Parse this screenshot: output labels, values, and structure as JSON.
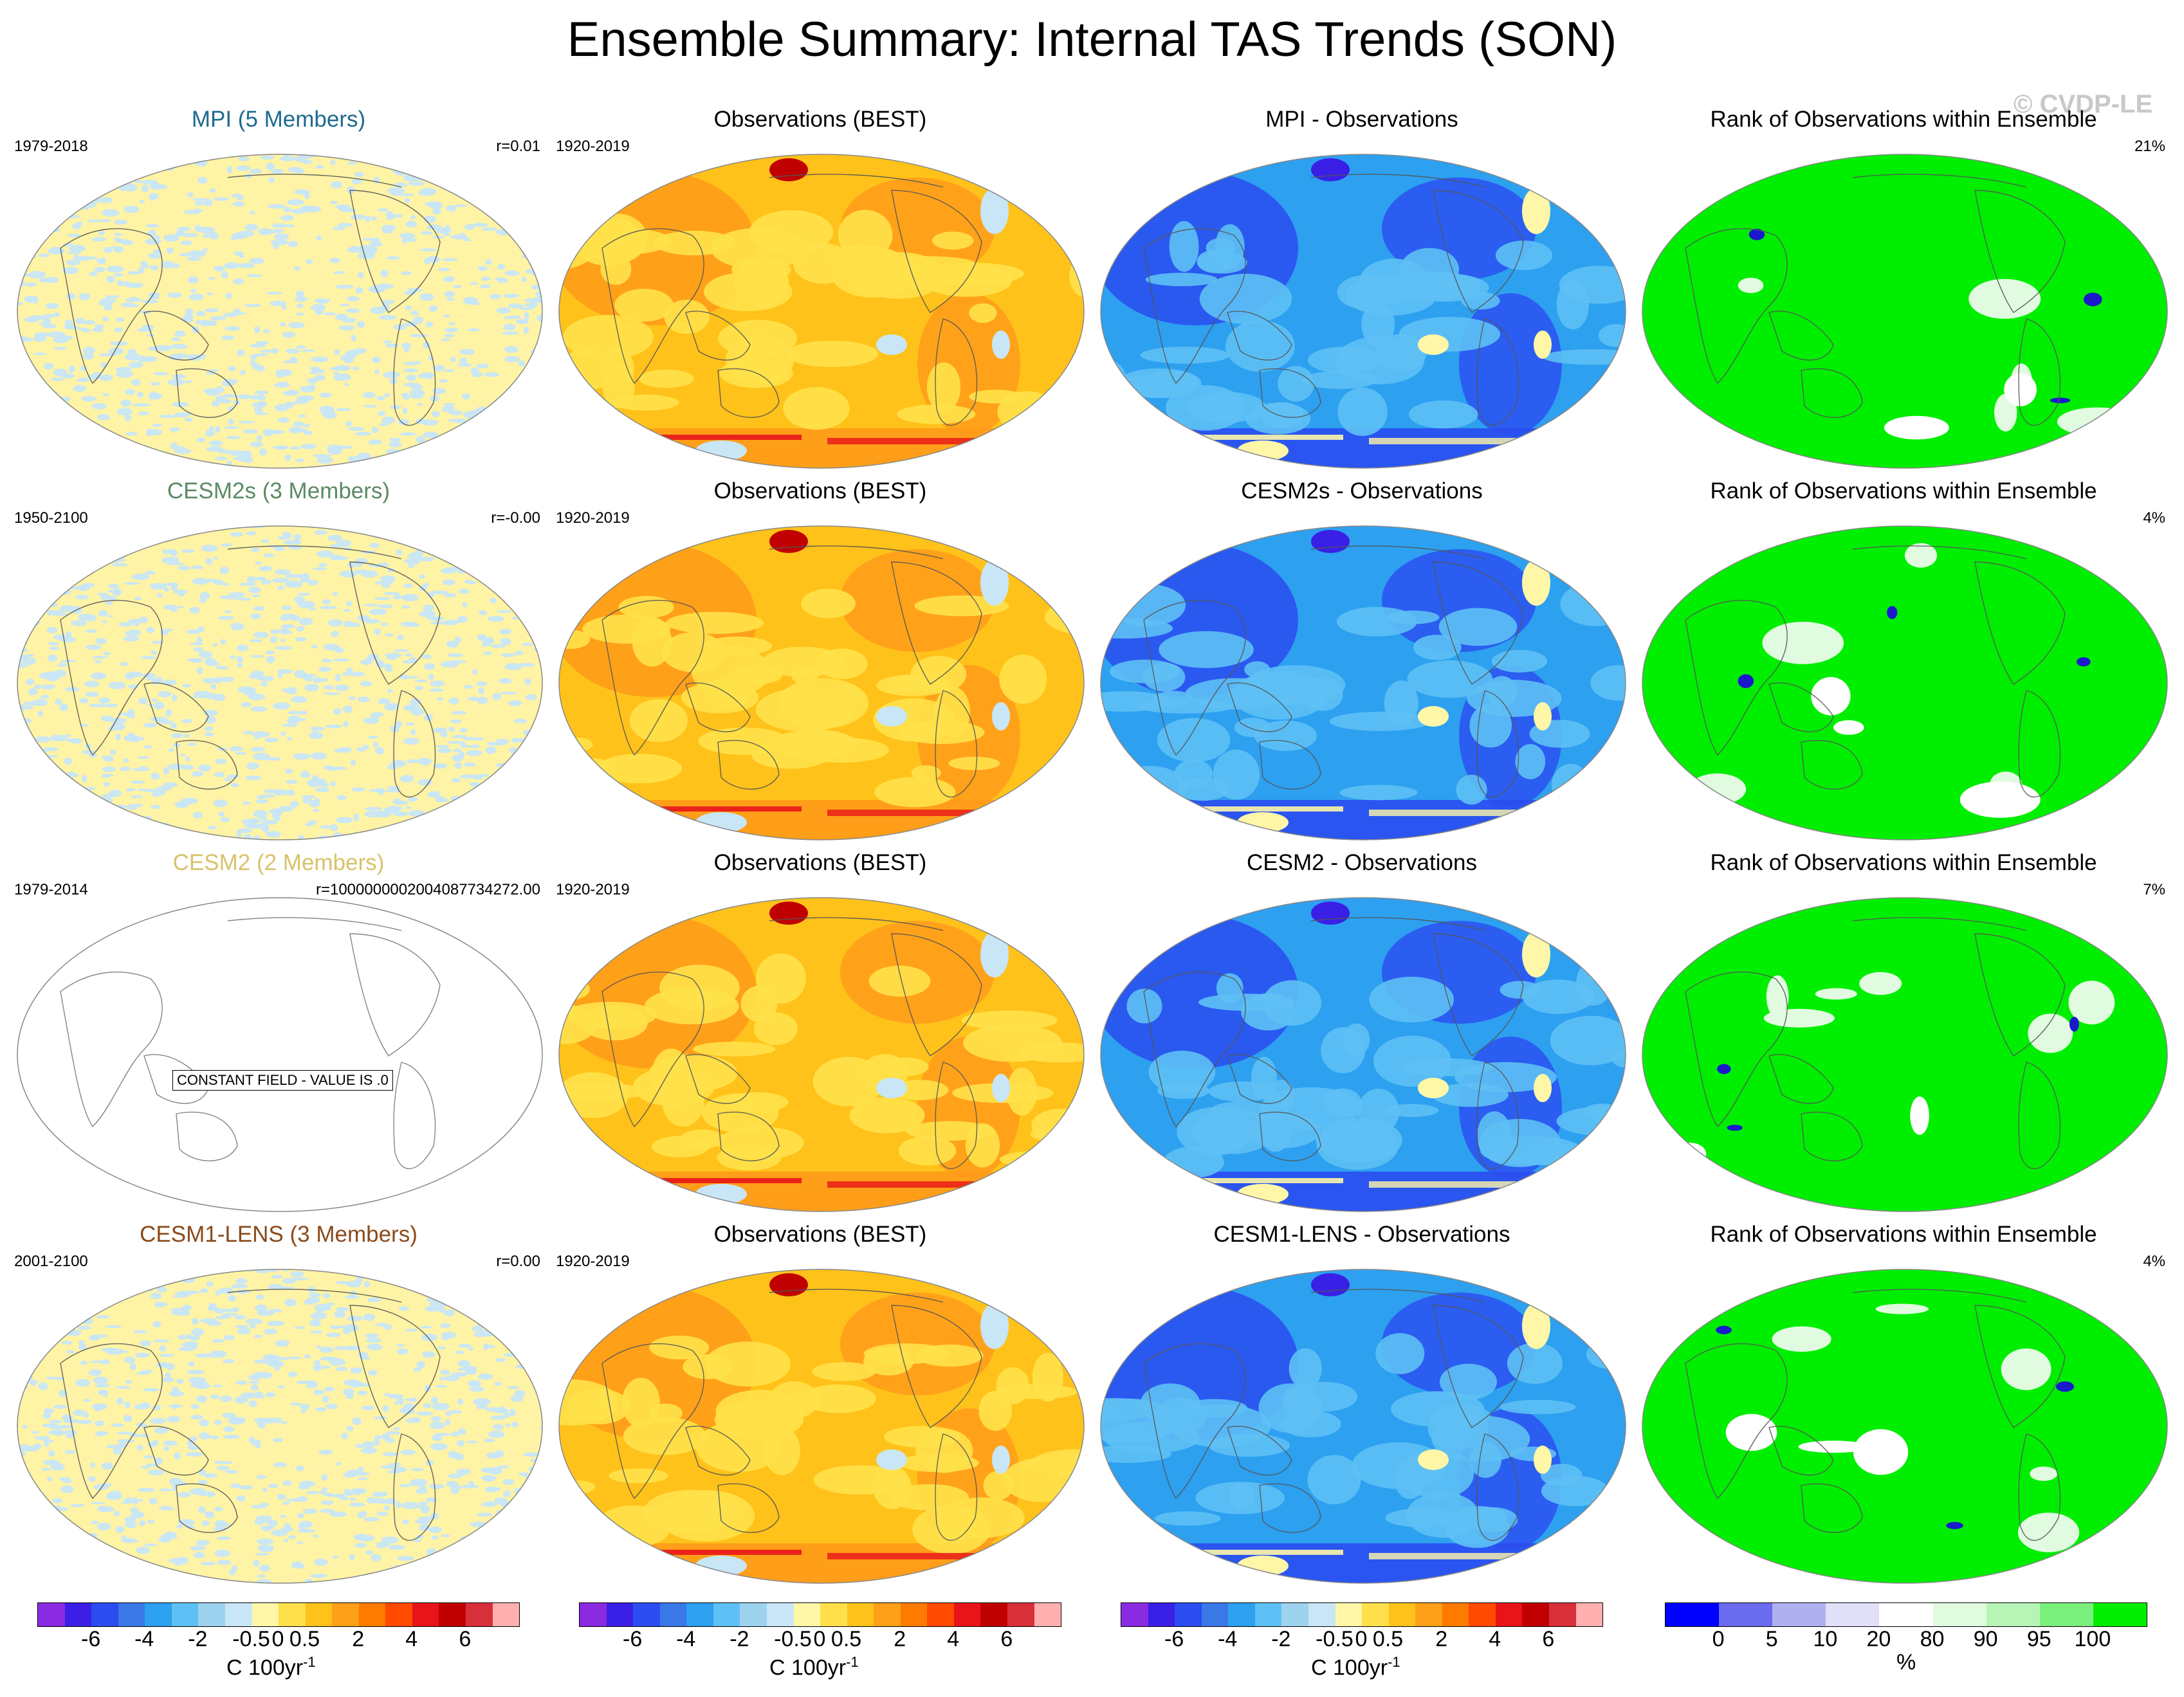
{
  "figure_title": "Ensemble Summary: Internal TAS Trends (SON)",
  "watermark": "© CVDP-LE",
  "rows": [
    {
      "model": {
        "title": "MPI (5 Members)",
        "title_color": "#1c6a8e",
        "period": "1979-2018",
        "r_value": "r=0.01"
      },
      "obs": {
        "title": "Observations (BEST)",
        "period": "1920-2019"
      },
      "diff": {
        "title": "MPI - Observations"
      },
      "rank": {
        "title": "Rank of Observations within Ensemble",
        "percent": "21%"
      }
    },
    {
      "model": {
        "title": "CESM2s (3 Members)",
        "title_color": "#5b8a64",
        "period": "1950-2100",
        "r_value": "r=-0.00"
      },
      "obs": {
        "title": "Observations (BEST)",
        "period": "1920-2019"
      },
      "diff": {
        "title": "CESM2s - Observations"
      },
      "rank": {
        "title": "Rank of Observations within Ensemble",
        "percent": "4%"
      }
    },
    {
      "model": {
        "title": "CESM2 (2 Members)",
        "title_color": "#d9c26a",
        "period": "1979-2014",
        "r_value": "r=1000000002004087734272.00",
        "constant_label": "CONSTANT FIELD - VALUE IS .0"
      },
      "obs": {
        "title": "Observations (BEST)",
        "period": "1920-2019"
      },
      "diff": {
        "title": "CESM2 - Observations"
      },
      "rank": {
        "title": "Rank of Observations within Ensemble",
        "percent": "7%"
      }
    },
    {
      "model": {
        "title": "CESM1-LENS (3 Members)",
        "title_color": "#8a4a1a",
        "period": "2001-2100",
        "r_value": "r=0.00"
      },
      "obs": {
        "title": "Observations (BEST)",
        "period": "1920-2019"
      },
      "diff": {
        "title": "CESM1-LENS - Observations"
      },
      "rank": {
        "title": "Rank of Observations within Ensemble",
        "percent": "4%"
      }
    }
  ],
  "trend_colorbar": {
    "colors": [
      "#8a2be2",
      "#3a1fe6",
      "#2a4cf0",
      "#3a78e8",
      "#2da0f0",
      "#5ec0f5",
      "#9ed3f0",
      "#c8e6f6",
      "#fff6a8",
      "#ffe04a",
      "#ffc21a",
      "#ffa01a",
      "#ff7a00",
      "#ff4a00",
      "#e8141a",
      "#c00000",
      "#d8303a",
      "#ffb0b0"
    ],
    "ticks": [
      "-6",
      "-4",
      "-2",
      "-0.5",
      "0",
      "0.5",
      "2",
      "4",
      "6"
    ],
    "unit_base": "C 100yr",
    "unit_sup": "-1"
  },
  "rank_colorbar": {
    "colors": [
      "#0000ff",
      "#6b6bf0",
      "#b0b0f0",
      "#e0e0f8",
      "#ffffff",
      "#e0fbe0",
      "#b6f5b6",
      "#7bef7b",
      "#00ee00"
    ],
    "ticks": [
      "0",
      "5",
      "10",
      "20",
      "80",
      "90",
      "95",
      "100"
    ],
    "unit": "%"
  },
  "palette": {
    "model_fill": "#fff3a6",
    "model_spot": "#c8e6f6",
    "obs_fill": "#ffc21a",
    "obs_deep": "#ff9a1a",
    "obs_light": "#ffe24a",
    "obs_red": "#e8141a",
    "diff_fill": "#2da0f0",
    "diff_light": "#5ec0f5",
    "diff_dark": "#2a4cf0",
    "diff_yellow": "#fff6a8",
    "rank_fill": "#00ee00",
    "rank_white": "#ffffff",
    "rank_pale": "#e0fbe0",
    "rank_blue": "#1a1acc"
  }
}
